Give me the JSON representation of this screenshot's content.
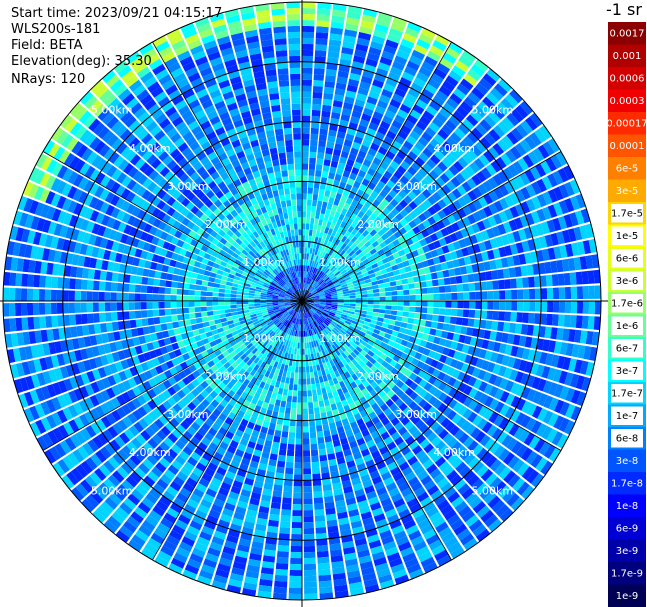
{
  "info": {
    "start_time": "Start time: 2023/09/21 04:15:17",
    "instrument": "WLS200s-181",
    "field": "Field: BETA",
    "elevation": "Elevation(deg): 35.30",
    "nrays": "NRays: 120"
  },
  "colorbar": {
    "title": "-1 sr",
    "labels": [
      "0.0017",
      "0.001",
      "0.0006",
      "0.0003",
      "0.00017",
      "0.0001",
      "6e-5",
      "3e-5",
      "1.7e-5",
      "1e-5",
      "6e-6",
      "3e-6",
      "1.7e-6",
      "1e-6",
      "6e-7",
      "3e-7",
      "1.7e-7",
      "1e-7",
      "6e-8",
      "3e-8",
      "1.7e-8",
      "1e-8",
      "6e-9",
      "3e-9",
      "1.7e-9",
      "1e-9"
    ],
    "colors": [
      "#8b0000",
      "#b00000",
      "#d40000",
      "#f00000",
      "#ff2a00",
      "#ff5500",
      "#ff7f00",
      "#ffaa00",
      "#ffd400",
      "#ffff00",
      "#e5ff19",
      "#ccff33",
      "#99ff66",
      "#66ff99",
      "#33ffcc",
      "#00ffff",
      "#00d4ff",
      "#00aaff",
      "#007fff",
      "#0055ff",
      "#002aff",
      "#0000ff",
      "#0000d4",
      "#0000aa",
      "#00007f",
      "#000055"
    ]
  },
  "chart_data": {
    "type": "heatmap",
    "projection": "polar (PPI scan)",
    "nrays": 120,
    "range_rings_km": [
      1.0,
      2.0,
      3.0,
      4.0,
      5.0
    ],
    "ring_labels": [
      "1.00km",
      "2.00km",
      "3.00km",
      "4.00km",
      "5.00km"
    ],
    "max_range_km": 5.0,
    "radial_spokes_deg": [
      0,
      30,
      60,
      90,
      120,
      150,
      180,
      210,
      240,
      270,
      300,
      330
    ],
    "field": "BETA",
    "color_scale": "log",
    "value_range": [
      1e-09,
      0.0017
    ],
    "dominant_range_by_distance": [
      {
        "range_km": [
          0.0,
          0.6
        ],
        "typical_value": "3e-8"
      },
      {
        "range_km": [
          0.6,
          1.6
        ],
        "typical_value": "1.7e-7"
      },
      {
        "range_km": [
          1.6,
          2.2
        ],
        "typical_value": "1.7e-7"
      },
      {
        "range_km": [
          2.2,
          5.0
        ],
        "typical_value": "6e-8"
      }
    ],
    "features": [
      {
        "description": "enhanced backscatter arc",
        "azimuth_deg": [
          290,
          40
        ],
        "range_km": [
          4.6,
          5.0
        ],
        "typical_value": "1e-6"
      }
    ]
  }
}
